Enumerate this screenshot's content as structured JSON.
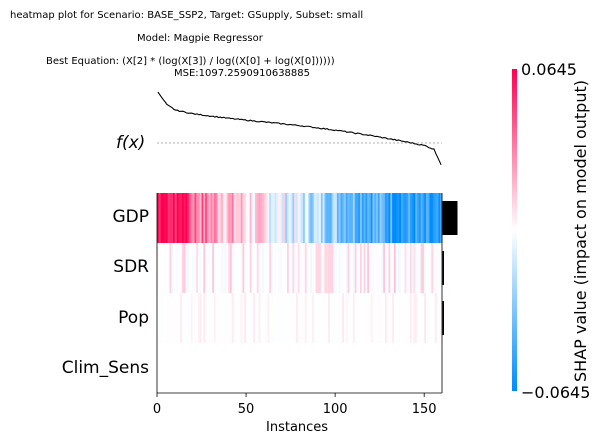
{
  "title_lines": [
    "heatmap plot for Scenario: BASE_SSP2, Target: GSupply, Subset: small",
    "Model: Magpie Regressor",
    "Best Equation: (X[2] * (log(X[3]) / log((X[0] + log(X[0])))))",
    "MSE:1097.2590910638885"
  ],
  "fx_label": "f(x)",
  "colors": {
    "positive": "#ff0051",
    "negative": "#008bfb",
    "importance_bar": "#000000"
  },
  "chart_data": {
    "type": "heatmap",
    "features": [
      "GDP",
      "SDR",
      "Pop",
      "Clim_Sens"
    ],
    "n_instances": 160,
    "x_ticks": [
      0,
      50,
      100,
      150
    ],
    "xlabel": "Instances",
    "colorbar": {
      "label": "SHAP value (impact on model output)",
      "min": -0.0645,
      "max": 0.0645,
      "min_label": "−0.0645",
      "max_label": "0.0645"
    },
    "feature_importance": [
      0.0478,
      0.004,
      0.0006,
      0.0
    ],
    "fx_curve": [
      [
        0,
        1.0
      ],
      [
        5,
        0.86
      ],
      [
        10,
        0.8
      ],
      [
        20,
        0.76
      ],
      [
        40,
        0.71
      ],
      [
        60,
        0.67
      ],
      [
        80,
        0.63
      ],
      [
        100,
        0.58
      ],
      [
        120,
        0.52
      ],
      [
        140,
        0.45
      ],
      [
        150,
        0.41
      ],
      [
        155,
        0.37
      ],
      [
        159,
        0.2
      ]
    ],
    "fx_reference": 0.4
  }
}
